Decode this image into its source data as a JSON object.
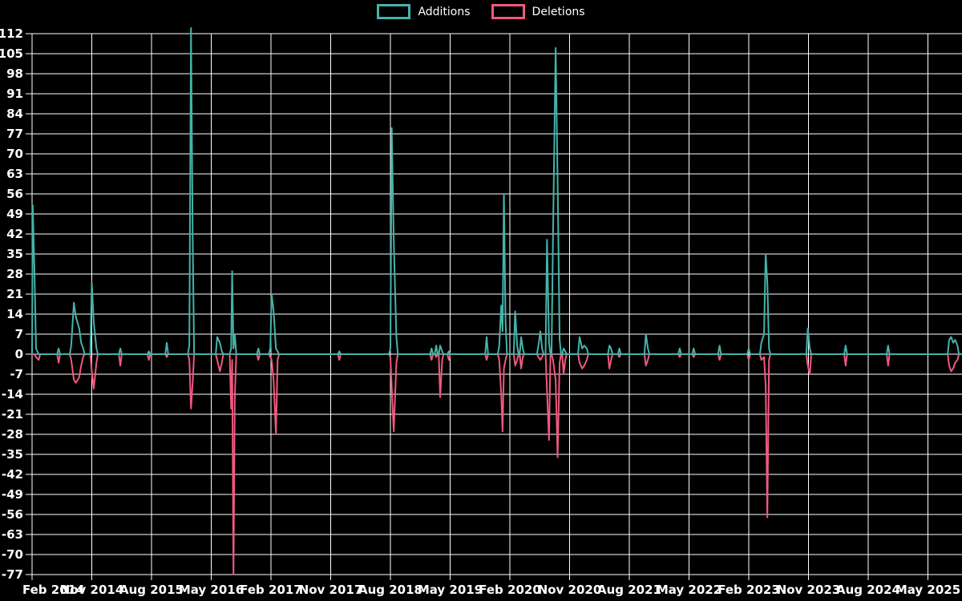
{
  "chart_data": {
    "type": "line",
    "title": "",
    "background_color": "#000000",
    "grid_color": "#ffffff",
    "text_color": "#ffffff",
    "grid": true,
    "legend_position": "top-center",
    "legend": [
      {
        "name": "Additions",
        "color": "#45b3aa"
      },
      {
        "name": "Deletions",
        "color": "#f0597f"
      }
    ],
    "x_axis": {
      "tick_labels": [
        "Feb 2014",
        "Nov 2014",
        "Aug 2015",
        "May 2016",
        "Feb 2017",
        "Nov 2017",
        "Aug 2018",
        "May 2019",
        "Feb 2020",
        "Nov 2020",
        "Aug 2021",
        "May 2022",
        "Feb 2023",
        "Nov 2023",
        "Aug 2024",
        "May 2025"
      ],
      "months_per_tick": 9,
      "total_months": 140.1
    },
    "y_axis": {
      "min": -77,
      "max": 112,
      "step": 7,
      "tick_labels": [
        "112",
        "105",
        "98",
        "91",
        "84",
        "77",
        "70",
        "63",
        "56",
        "49",
        "42",
        "35",
        "28",
        "21",
        "14",
        "7",
        "0",
        "-7",
        "-14",
        "-21",
        "-28",
        "-35",
        "-42",
        "-49",
        "-56",
        "-63",
        "-70",
        "-77"
      ]
    },
    "points_format": [
      "month_offset_from_Feb2014",
      "additions",
      "deletions"
    ],
    "points": [
      [
        0.1,
        52,
        0
      ],
      [
        0.35,
        30,
        0
      ],
      [
        0.6,
        2,
        -1
      ],
      [
        1.0,
        0,
        -2
      ],
      [
        4.0,
        2,
        -3
      ],
      [
        5.9,
        3,
        -2
      ],
      [
        6.3,
        18,
        -9
      ],
      [
        6.6,
        13,
        -10
      ],
      [
        7.1,
        9,
        -8
      ],
      [
        7.4,
        4,
        -4
      ],
      [
        7.7,
        2,
        -1
      ],
      [
        9.0,
        25,
        -6
      ],
      [
        9.3,
        11,
        -12
      ],
      [
        9.7,
        2,
        -3
      ],
      [
        13.3,
        2,
        -4
      ],
      [
        17.6,
        1,
        -2
      ],
      [
        20.3,
        4,
        -1
      ],
      [
        23.7,
        3,
        -2
      ],
      [
        23.95,
        114,
        -19
      ],
      [
        24.2,
        42,
        -10
      ],
      [
        27.9,
        6,
        -2
      ],
      [
        28.3,
        4,
        -6
      ],
      [
        28.6,
        1,
        -3
      ],
      [
        30.0,
        2,
        -19
      ],
      [
        30.15,
        29,
        -2
      ],
      [
        30.35,
        2,
        -77
      ],
      [
        30.55,
        7,
        -15
      ],
      [
        34.1,
        2,
        -2
      ],
      [
        35.9,
        2,
        -1
      ],
      [
        36.1,
        21,
        -2
      ],
      [
        36.4,
        15,
        -9
      ],
      [
        36.75,
        2,
        -28
      ],
      [
        37.0,
        1,
        -2
      ],
      [
        46.3,
        1,
        -2
      ],
      [
        54.0,
        2,
        -1
      ],
      [
        54.2,
        79,
        -12
      ],
      [
        54.5,
        40,
        -27
      ],
      [
        54.9,
        6,
        -3
      ],
      [
        60.2,
        2,
        -2
      ],
      [
        60.9,
        3,
        -1
      ],
      [
        61.5,
        3,
        -15
      ],
      [
        61.8,
        1,
        -2
      ],
      [
        62.8,
        1,
        -2
      ],
      [
        68.5,
        6,
        -2
      ],
      [
        70.4,
        3,
        -2
      ],
      [
        70.7,
        17,
        -14
      ],
      [
        70.9,
        8,
        -27
      ],
      [
        71.1,
        56,
        -5
      ],
      [
        71.35,
        11,
        -2
      ],
      [
        72.8,
        15,
        -4
      ],
      [
        73.1,
        3,
        -2
      ],
      [
        73.7,
        6,
        -5
      ],
      [
        73.95,
        2,
        -1
      ],
      [
        76.3,
        3,
        -1
      ],
      [
        76.6,
        8,
        -2
      ],
      [
        76.85,
        2,
        -1
      ],
      [
        77.6,
        40,
        -13
      ],
      [
        77.9,
        4,
        -30
      ],
      [
        78.5,
        41,
        -2
      ],
      [
        78.9,
        107,
        -9
      ],
      [
        79.2,
        60,
        -36
      ],
      [
        79.5,
        5,
        -3
      ],
      [
        80.1,
        2,
        -7
      ],
      [
        80.35,
        1,
        -2
      ],
      [
        82.5,
        6,
        -3
      ],
      [
        82.9,
        2,
        -5
      ],
      [
        83.2,
        3,
        -4
      ],
      [
        83.6,
        2,
        -2
      ],
      [
        87.0,
        3,
        -5
      ],
      [
        87.25,
        2,
        -2
      ],
      [
        88.5,
        2,
        -1
      ],
      [
        92.5,
        7,
        -4
      ],
      [
        92.8,
        2,
        -2
      ],
      [
        97.6,
        2,
        -1
      ],
      [
        99.7,
        2,
        -1
      ],
      [
        103.6,
        3,
        -2
      ],
      [
        108.0,
        2,
        -2
      ],
      [
        109.9,
        4,
        -2
      ],
      [
        110.3,
        7,
        -1
      ],
      [
        110.55,
        35,
        -11
      ],
      [
        110.8,
        25,
        -57
      ],
      [
        111.05,
        2,
        -2
      ],
      [
        116.9,
        9,
        -4
      ],
      [
        117.2,
        2,
        -7
      ],
      [
        122.6,
        3,
        -4
      ],
      [
        129.0,
        3,
        -4
      ],
      [
        138.2,
        5,
        -4
      ],
      [
        138.5,
        6,
        -6
      ],
      [
        138.8,
        4,
        -5
      ],
      [
        139.1,
        5,
        -3
      ],
      [
        139.45,
        3,
        -2
      ]
    ]
  }
}
